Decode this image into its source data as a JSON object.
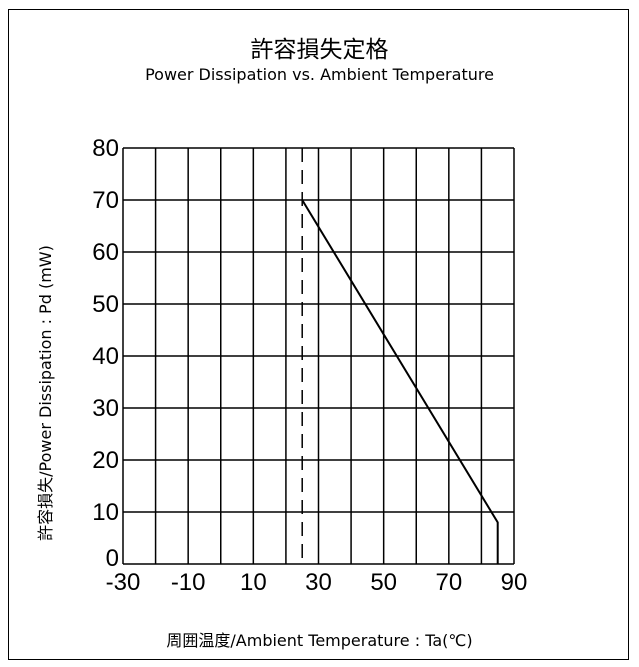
{
  "chart_data": {
    "type": "line",
    "title": "許容損失定格",
    "subtitle": "Power Dissipation vs. Ambient Temperature",
    "xlabel": "周囲温度/Ambient Temperature : Ta(℃)",
    "ylabel": "許容損失/Power Dissipation : Pd (mW)",
    "xlim": [
      -30,
      90
    ],
    "ylim": [
      0,
      80
    ],
    "x_ticks": [
      -30,
      -10,
      10,
      30,
      50,
      70,
      90
    ],
    "y_ticks": [
      0,
      10,
      20,
      30,
      40,
      50,
      60,
      70,
      80
    ],
    "grid": true,
    "series": [
      {
        "x": [
          25,
          85,
          85
        ],
        "y": [
          70,
          8,
          0
        ]
      }
    ],
    "reference_line": {
      "x": 25,
      "style": "dashed"
    }
  }
}
